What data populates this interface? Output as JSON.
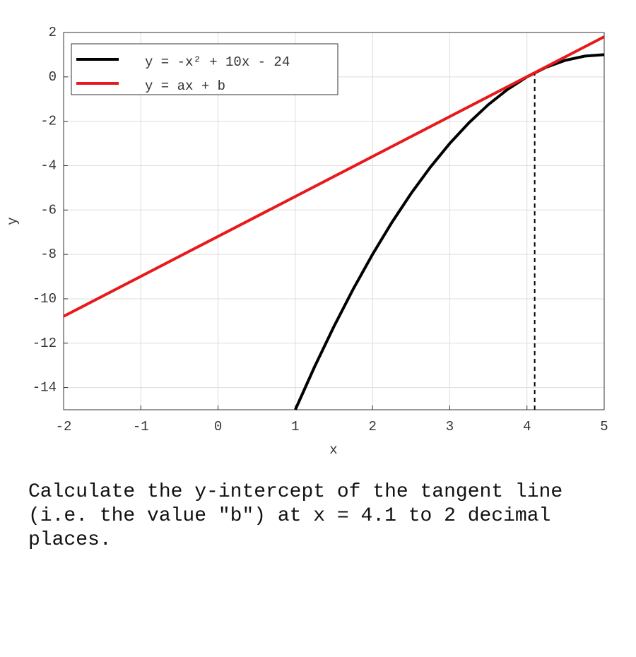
{
  "chart_data": {
    "type": "line",
    "xlabel": "x",
    "ylabel": "y",
    "xlim": [
      -2,
      5
    ],
    "ylim": [
      -15,
      2
    ],
    "xticks": [
      -2,
      -1,
      0,
      1,
      2,
      3,
      4,
      5
    ],
    "yticks": [
      -14,
      -12,
      -10,
      -8,
      -6,
      -4,
      -2,
      0,
      2
    ],
    "grid": true,
    "legend": "upper left",
    "series": [
      {
        "name": "y = -x² + 10x - 24",
        "color": "#000000",
        "x": [
          1,
          1.25,
          1.5,
          1.75,
          2,
          2.25,
          2.5,
          2.75,
          3,
          3.25,
          3.5,
          3.75,
          4,
          4.25,
          4.5,
          4.75,
          5
        ],
        "values": [
          -15,
          -13.0625,
          -11.25,
          -9.5625,
          -8,
          -6.5625,
          -5.25,
          -4.0625,
          -3,
          -2.0625,
          -1.25,
          -0.5625,
          0,
          0.4375,
          0.75,
          0.9375,
          1
        ]
      },
      {
        "name": "y = ax + b",
        "color": "#e8191c",
        "x": [
          -2,
          5
        ],
        "values": [
          -10.79,
          1.81
        ]
      }
    ],
    "vline": {
      "x": 4.1,
      "y": 0.19
    }
  },
  "question": "Calculate the y-intercept of the tangent line (i.e. the value \"b\") at x = 4.1 to 2 decimal places."
}
